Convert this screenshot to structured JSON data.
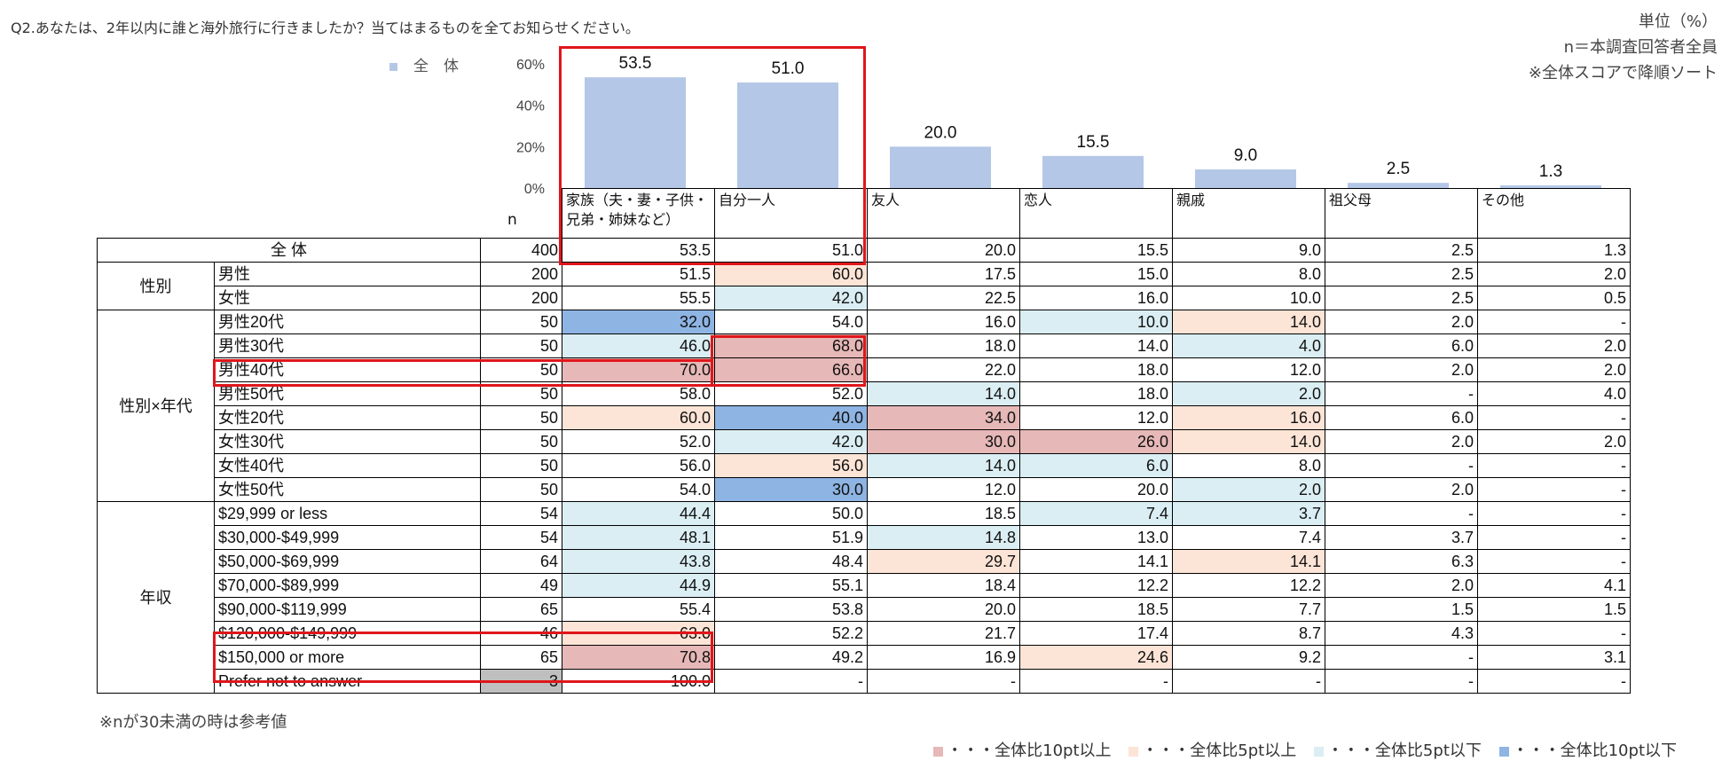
{
  "question": "Q2.あなたは、2年以内に誰と海外旅行に行きましたか？当てはまるものを全てお知らせください。",
  "notes": [
    "単位（%）",
    "n＝本調査回答者全員",
    "※全体スコアで降順ソート"
  ],
  "legend_top": "全　体",
  "n_header": "n",
  "footnote": "※nが30未満の時は参考値",
  "legend_bottom": [
    {
      "label": "・・・全体比10pt以上",
      "color": "#e6b8b7"
    },
    {
      "label": "・・・全体比5pt以上",
      "color": "#fce4d6"
    },
    {
      "label": "・・・全体比5pt以下",
      "color": "#daeef3"
    },
    {
      "label": "・・・全体比10pt以下",
      "color": "#8eb4e3"
    }
  ],
  "chart_data": {
    "type": "bar",
    "categories": [
      "家族（夫・妻・子供・兄弟・姉妹など）",
      "自分一人",
      "友人",
      "恋人",
      "親戚",
      "祖父母",
      "その他"
    ],
    "values": [
      53.5,
      51.0,
      20.0,
      15.5,
      9.0,
      2.5,
      1.3
    ],
    "value_labels": [
      "53.5",
      "51.0",
      "20.0",
      "15.5",
      "9.0",
      "2.5",
      "1.3"
    ],
    "series": [
      {
        "name": "全　体",
        "values": [
          53.5,
          51.0,
          20.0,
          15.5,
          9.0,
          2.5,
          1.3
        ]
      }
    ],
    "ylim": [
      0,
      60
    ],
    "yticks": [
      "0%",
      "20%",
      "40%",
      "60%"
    ],
    "bar_color": "#b4c7e7",
    "legend": "left"
  },
  "table": {
    "columns": [
      [
        "家族（夫・妻・子供・",
        "兄弟・姉妹など）"
      ],
      [
        "自分一人"
      ],
      [
        "友人"
      ],
      [
        "恋人"
      ],
      [
        "親戚"
      ],
      [
        "祖父母"
      ],
      [
        "その他"
      ]
    ],
    "total": {
      "label": "全 体",
      "n": "400",
      "values": [
        "53.5",
        "51.0",
        "20.0",
        "15.5",
        "9.0",
        "2.5",
        "1.3"
      ]
    },
    "groups": [
      {
        "name": "性別",
        "rows": [
          {
            "label": "男性",
            "n": "200",
            "values": [
              "51.5",
              "60.0",
              "17.5",
              "15.0",
              "8.0",
              "2.5",
              "2.0"
            ],
            "hl": [
              "",
              "hi5",
              "",
              "",
              "",
              "",
              ""
            ]
          },
          {
            "label": "女性",
            "n": "200",
            "values": [
              "55.5",
              "42.0",
              "22.5",
              "16.0",
              "10.0",
              "2.5",
              "0.5"
            ],
            "hl": [
              "",
              "lo5",
              "",
              "",
              "",
              "",
              ""
            ]
          }
        ]
      },
      {
        "name": "性別×年代",
        "rows": [
          {
            "label": "男性20代",
            "n": "50",
            "values": [
              "32.0",
              "54.0",
              "16.0",
              "10.0",
              "14.0",
              "2.0",
              "-"
            ],
            "hl": [
              "lo10",
              "",
              "",
              "lo5",
              "hi5",
              "",
              ""
            ]
          },
          {
            "label": "男性30代",
            "n": "50",
            "values": [
              "46.0",
              "68.0",
              "18.0",
              "14.0",
              "4.0",
              "6.0",
              "2.0"
            ],
            "hl": [
              "lo5",
              "hi10",
              "",
              "",
              "lo5",
              "",
              ""
            ]
          },
          {
            "label": "男性40代",
            "n": "50",
            "values": [
              "70.0",
              "66.0",
              "22.0",
              "18.0",
              "12.0",
              "2.0",
              "2.0"
            ],
            "hl": [
              "hi10",
              "hi10",
              "",
              "",
              "",
              "",
              ""
            ]
          },
          {
            "label": "男性50代",
            "n": "50",
            "values": [
              "58.0",
              "52.0",
              "14.0",
              "18.0",
              "2.0",
              "-",
              "4.0"
            ],
            "hl": [
              "",
              "",
              "lo5",
              "",
              "lo5",
              "",
              ""
            ]
          },
          {
            "label": "女性20代",
            "n": "50",
            "values": [
              "60.0",
              "40.0",
              "34.0",
              "12.0",
              "16.0",
              "6.0",
              "-"
            ],
            "hl": [
              "hi5",
              "lo10",
              "hi10",
              "",
              "hi5",
              "",
              ""
            ]
          },
          {
            "label": "女性30代",
            "n": "50",
            "values": [
              "52.0",
              "42.0",
              "30.0",
              "26.0",
              "14.0",
              "2.0",
              "2.0"
            ],
            "hl": [
              "",
              "lo5",
              "hi10",
              "hi10",
              "hi5",
              "",
              ""
            ]
          },
          {
            "label": "女性40代",
            "n": "50",
            "values": [
              "56.0",
              "56.0",
              "14.0",
              "6.0",
              "8.0",
              "-",
              "-"
            ],
            "hl": [
              "",
              "hi5",
              "lo5",
              "lo5",
              "",
              "",
              ""
            ]
          },
          {
            "label": "女性50代",
            "n": "50",
            "values": [
              "54.0",
              "30.0",
              "12.0",
              "20.0",
              "2.0",
              "2.0",
              "-"
            ],
            "hl": [
              "",
              "lo10",
              "",
              "",
              "lo5",
              "",
              ""
            ]
          }
        ]
      },
      {
        "name": "年収",
        "rows": [
          {
            "label": "$29,999  or  less",
            "n": "54",
            "values": [
              "44.4",
              "50.0",
              "18.5",
              "7.4",
              "3.7",
              "-",
              "-"
            ],
            "hl": [
              "lo5",
              "",
              "",
              "lo5",
              "lo5",
              "",
              ""
            ]
          },
          {
            "label": "$30,000-$49,999",
            "n": "54",
            "values": [
              "48.1",
              "51.9",
              "14.8",
              "13.0",
              "7.4",
              "3.7",
              "-"
            ],
            "hl": [
              "lo5",
              "",
              "lo5",
              "",
              "",
              "",
              ""
            ]
          },
          {
            "label": "$50,000-$69,999",
            "n": "64",
            "values": [
              "43.8",
              "48.4",
              "29.7",
              "14.1",
              "14.1",
              "6.3",
              "-"
            ],
            "hl": [
              "lo5",
              "",
              "hi5",
              "",
              "hi5",
              "",
              ""
            ]
          },
          {
            "label": "$70,000-$89,999",
            "n": "49",
            "values": [
              "44.9",
              "55.1",
              "18.4",
              "12.2",
              "12.2",
              "2.0",
              "4.1"
            ],
            "hl": [
              "lo5",
              "",
              "",
              "",
              "",
              "",
              ""
            ]
          },
          {
            "label": "$90,000-$119,999",
            "n": "65",
            "values": [
              "55.4",
              "53.8",
              "20.0",
              "18.5",
              "7.7",
              "1.5",
              "1.5"
            ],
            "hl": [
              "",
              "",
              "",
              "",
              "",
              "",
              ""
            ]
          },
          {
            "label": "$120,000-$149,999",
            "n": "46",
            "values": [
              "63.0",
              "52.2",
              "21.7",
              "17.4",
              "8.7",
              "4.3",
              "-"
            ],
            "hl": [
              "hi5",
              "",
              "",
              "",
              "",
              "",
              ""
            ]
          },
          {
            "label": "$150,000  or  more",
            "n": "65",
            "values": [
              "70.8",
              "49.2",
              "16.9",
              "24.6",
              "9.2",
              "-",
              "3.1"
            ],
            "hl": [
              "hi10",
              "",
              "",
              "hi5",
              "",
              "",
              ""
            ]
          },
          {
            "label": "Prefer  not  to  answer",
            "n": "3",
            "values": [
              "100.0",
              "-",
              "-",
              "-",
              "-",
              "-",
              "-"
            ],
            "hl": [
              "",
              "",
              "",
              "",
              "",
              "",
              ""
            ],
            "n_gray": true
          }
        ]
      }
    ]
  }
}
